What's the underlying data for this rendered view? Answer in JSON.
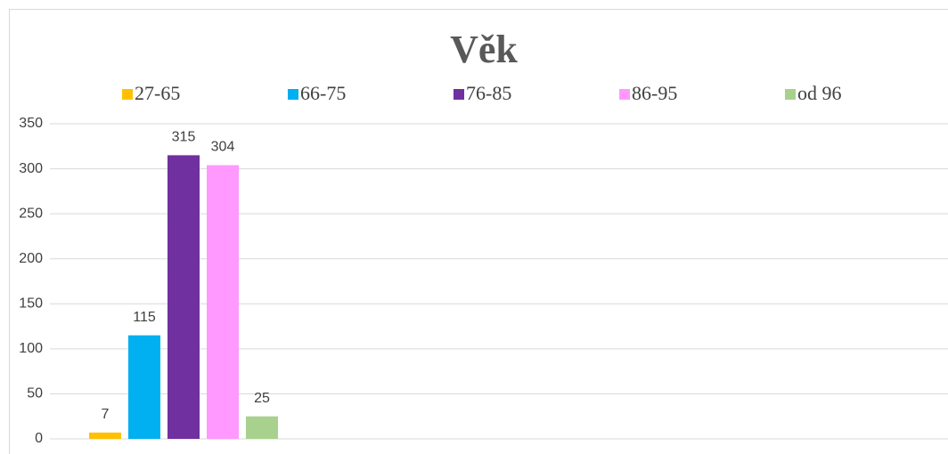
{
  "chart_data": {
    "type": "bar",
    "title": "Věk",
    "categories": [
      null
    ],
    "series": [
      {
        "name": "27-65",
        "color": "#ffc000",
        "values": [
          7
        ]
      },
      {
        "name": "66-75",
        "color": "#00b0f0",
        "values": [
          115
        ]
      },
      {
        "name": "76-85",
        "color": "#7030a0",
        "values": [
          315
        ]
      },
      {
        "name": "86-95",
        "color": "#ff99ff",
        "values": [
          304
        ]
      },
      {
        "name": "od 96",
        "color": "#a9d18e",
        "values": [
          25
        ]
      }
    ],
    "ylim": [
      0,
      350
    ],
    "yticks": [
      0,
      50,
      100,
      150,
      200,
      250,
      300,
      350
    ],
    "grid": true,
    "legend": "top"
  }
}
